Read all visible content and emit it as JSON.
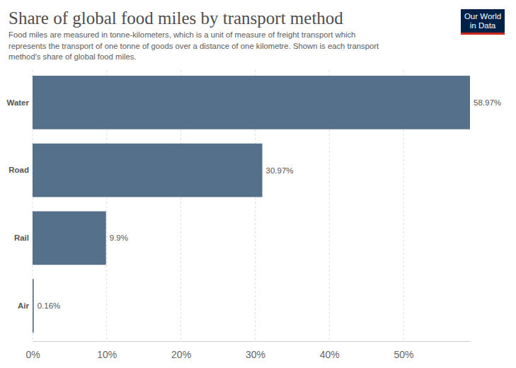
{
  "chart_data": {
    "type": "bar",
    "title": "Share of global food miles by transport method",
    "subtitle": [
      "Food miles are measured in tonne-kilometers, which is a unit of measure of freight transport which",
      "represents the transport of one tonne of goods over a distance of one kilometre. Shown is each transport",
      "method's share of global food miles."
    ],
    "logo": [
      "Our World",
      "in Data"
    ],
    "categories": [
      "Water",
      "Road",
      "Rail",
      "Air"
    ],
    "values": [
      58.97,
      30.97,
      9.9,
      0.16
    ],
    "value_labels": [
      "58.97%",
      "30.97%",
      "9.9%",
      "0.16%"
    ],
    "color": "#55708a",
    "orientation": "horizontal",
    "data_labels": true,
    "grid": true,
    "xlim": [
      0,
      58.97
    ],
    "xticks": [
      {
        "value": 0,
        "label": "0%"
      },
      {
        "value": 10,
        "label": "10%"
      },
      {
        "value": 20,
        "label": "20%"
      },
      {
        "value": 30,
        "label": "30%"
      },
      {
        "value": 40,
        "label": "40%"
      },
      {
        "value": 50,
        "label": "50%"
      }
    ]
  }
}
